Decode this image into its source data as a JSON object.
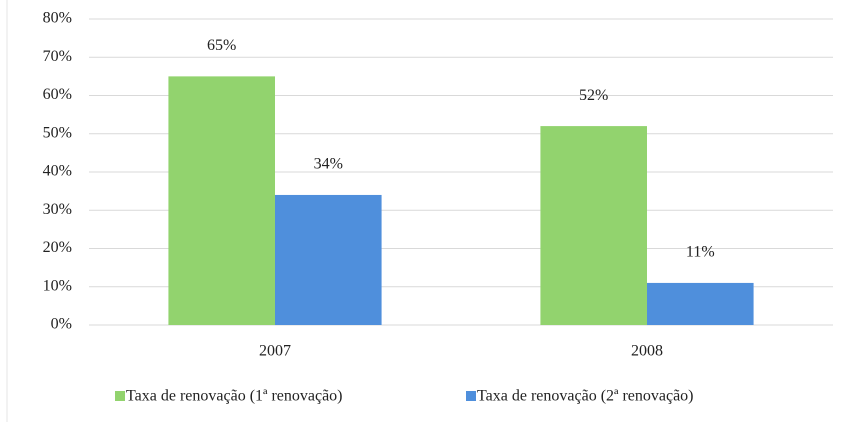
{
  "chart_data": {
    "type": "bar",
    "categories": [
      "2007",
      "2008"
    ],
    "series": [
      {
        "name": "Taxa de renovação (1ª renovação)",
        "color": "#92d36e",
        "values": [
          65,
          52
        ],
        "value_labels": [
          "65%",
          "52%"
        ]
      },
      {
        "name": "Taxa de renovação (2ª renovação)",
        "color": "#4f8fdc",
        "values": [
          34,
          11
        ],
        "value_labels": [
          "34%",
          "11%"
        ]
      }
    ],
    "ylim": [
      0,
      80
    ],
    "yticks": [
      {
        "value": 0,
        "label": "0%"
      },
      {
        "value": 10,
        "label": "10%"
      },
      {
        "value": 20,
        "label": "20%"
      },
      {
        "value": 30,
        "label": "30%"
      },
      {
        "value": 40,
        "label": "40%"
      },
      {
        "value": 50,
        "label": "50%"
      },
      {
        "value": 60,
        "label": "60%"
      },
      {
        "value": 70,
        "label": "70%"
      },
      {
        "value": 80,
        "label": "80%"
      }
    ],
    "grid": true,
    "legend": "bottom"
  }
}
